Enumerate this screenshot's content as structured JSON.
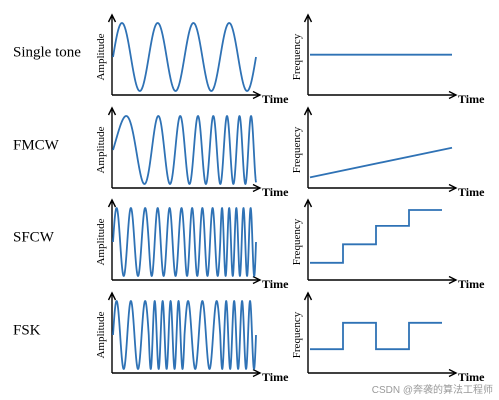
{
  "colors": {
    "signal": "#2f72b5",
    "axis": "#000000"
  },
  "rows": [
    {
      "label": "Single tone",
      "amplitude_axis": "Amplitude",
      "frequency_axis": "Frequency",
      "time_axis": "Time",
      "waveform": {
        "kind": "constant",
        "cycles": 4
      },
      "frequency_profile": {
        "kind": "constant",
        "level": 0.55
      }
    },
    {
      "label": "FMCW",
      "amplitude_axis": "Amplitude",
      "frequency_axis": "Frequency",
      "time_axis": "Time",
      "waveform": {
        "kind": "chirp",
        "cycles_start": 0.8,
        "cycles_end": 4.5
      },
      "frequency_profile": {
        "kind": "ramp",
        "start": 0.1,
        "end": 0.55
      }
    },
    {
      "label": "SFCW",
      "amplitude_axis": "Amplitude",
      "frequency_axis": "Frequency",
      "time_axis": "Time",
      "waveform": {
        "kind": "stepped",
        "cycles_per_segment": [
          2.5,
          3,
          3.5,
          5
        ]
      },
      "frequency_profile": {
        "kind": "steps",
        "levels": [
          0.2,
          0.48,
          0.76,
          1.0
        ]
      }
    },
    {
      "label": "FSK",
      "amplitude_axis": "Amplitude",
      "frequency_axis": "Frequency",
      "time_axis": "Time",
      "waveform": {
        "kind": "fsk",
        "cycles_per_segment": [
          2.5,
          4.5,
          2.5,
          4.5
        ]
      },
      "frequency_profile": {
        "kind": "fsk",
        "levels": [
          0.3,
          0.7,
          0.3,
          0.7
        ]
      }
    }
  ],
  "watermark": "CSDN @奔袭的算法工程师"
}
